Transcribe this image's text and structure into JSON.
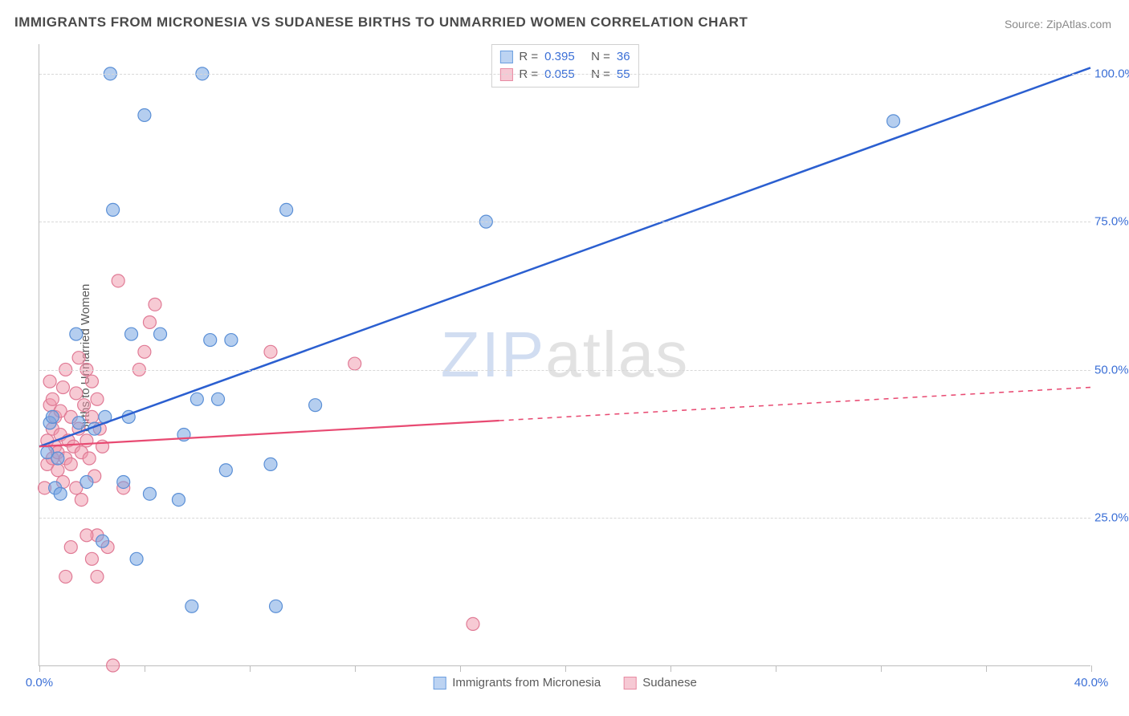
{
  "title": "IMMIGRANTS FROM MICRONESIA VS SUDANESE BIRTHS TO UNMARRIED WOMEN CORRELATION CHART",
  "source": "Source: ZipAtlas.com",
  "ylabel": "Births to Unmarried Women",
  "watermark": {
    "zip": "ZIP",
    "atlas": "atlas"
  },
  "chart": {
    "type": "scatter-with-trend",
    "xlim": [
      0,
      40
    ],
    "ylim": [
      0,
      105
    ],
    "x_ticks": [
      0,
      4,
      8,
      12,
      16,
      20,
      24,
      28,
      32,
      36,
      40
    ],
    "x_tick_labels": {
      "0": "0.0%",
      "40": "40.0%"
    },
    "y_ticks": [
      25,
      50,
      75,
      100
    ],
    "y_tick_labels": {
      "25": "25.0%",
      "50": "50.0%",
      "75": "75.0%",
      "100": "100.0%"
    },
    "background_color": "#ffffff",
    "grid_color": "#d8d8d8",
    "axis_color": "#bdbdbd",
    "label_fontsize": 15,
    "tick_color_left": "#5a5a5a",
    "tick_color_right_blue": "#3b6fd6",
    "series": [
      {
        "name": "Immigrants from Micronesia",
        "color_fill": "rgba(120,165,225,0.55)",
        "color_stroke": "#5a8fd6",
        "swatch_fill": "#bcd3f2",
        "swatch_border": "#6a9ee0",
        "trend_color": "#2b5fd0",
        "trend_width": 2.5,
        "r_value": "0.395",
        "n_value": "36",
        "trend_line": {
          "x1": 0,
          "y1": 37,
          "x2": 40,
          "y2": 101
        },
        "trend_dash_from_x": 40,
        "points": [
          [
            0.3,
            36
          ],
          [
            0.4,
            41
          ],
          [
            0.5,
            42
          ],
          [
            0.6,
            30
          ],
          [
            0.7,
            35
          ],
          [
            0.8,
            29
          ],
          [
            1.4,
            56
          ],
          [
            1.5,
            41
          ],
          [
            1.8,
            31
          ],
          [
            2.1,
            40
          ],
          [
            2.4,
            21
          ],
          [
            2.5,
            42
          ],
          [
            2.7,
            100
          ],
          [
            2.8,
            77
          ],
          [
            3.2,
            31
          ],
          [
            3.4,
            42
          ],
          [
            3.5,
            56
          ],
          [
            3.7,
            18
          ],
          [
            4.0,
            93
          ],
          [
            4.2,
            29
          ],
          [
            4.6,
            56
          ],
          [
            5.3,
            28
          ],
          [
            5.5,
            39
          ],
          [
            5.8,
            10
          ],
          [
            6.0,
            45
          ],
          [
            6.2,
            100
          ],
          [
            6.5,
            55
          ],
          [
            6.8,
            45
          ],
          [
            7.1,
            33
          ],
          [
            7.3,
            55
          ],
          [
            8.8,
            34
          ],
          [
            9.0,
            10
          ],
          [
            9.4,
            77
          ],
          [
            10.5,
            44
          ],
          [
            17.0,
            75
          ],
          [
            32.5,
            92
          ]
        ]
      },
      {
        "name": "Sudanese",
        "color_fill": "rgba(240,150,170,0.50)",
        "color_stroke": "#e07a95",
        "swatch_fill": "#f6c9d4",
        "swatch_border": "#e78ba3",
        "trend_color": "#e84a72",
        "trend_width": 2.2,
        "r_value": "0.055",
        "n_value": "55",
        "trend_line": {
          "x1": 0,
          "y1": 37,
          "x2": 40,
          "y2": 47
        },
        "trend_dash_from_x": 17.5,
        "points": [
          [
            0.2,
            30
          ],
          [
            0.3,
            34
          ],
          [
            0.3,
            38
          ],
          [
            0.4,
            44
          ],
          [
            0.4,
            48
          ],
          [
            0.5,
            35
          ],
          [
            0.5,
            40
          ],
          [
            0.5,
            45
          ],
          [
            0.6,
            37
          ],
          [
            0.6,
            42
          ],
          [
            0.7,
            33
          ],
          [
            0.7,
            36
          ],
          [
            0.8,
            39
          ],
          [
            0.8,
            43
          ],
          [
            0.9,
            31
          ],
          [
            0.9,
            47
          ],
          [
            1.0,
            35
          ],
          [
            1.0,
            50
          ],
          [
            1.1,
            38
          ],
          [
            1.2,
            34
          ],
          [
            1.2,
            42
          ],
          [
            1.3,
            37
          ],
          [
            1.4,
            46
          ],
          [
            1.5,
            40
          ],
          [
            1.5,
            52
          ],
          [
            1.6,
            36
          ],
          [
            1.7,
            44
          ],
          [
            1.8,
            38
          ],
          [
            1.8,
            50
          ],
          [
            1.9,
            35
          ],
          [
            2.0,
            42
          ],
          [
            2.0,
            48
          ],
          [
            2.1,
            32
          ],
          [
            2.2,
            22
          ],
          [
            2.2,
            45
          ],
          [
            2.3,
            40
          ],
          [
            2.4,
            37
          ],
          [
            1.4,
            30
          ],
          [
            1.6,
            28
          ],
          [
            1.8,
            22
          ],
          [
            2.0,
            18
          ],
          [
            2.2,
            15
          ],
          [
            2.6,
            20
          ],
          [
            2.8,
            0
          ],
          [
            3.0,
            65
          ],
          [
            3.2,
            30
          ],
          [
            3.8,
            50
          ],
          [
            4.0,
            53
          ],
          [
            4.2,
            58
          ],
          [
            4.4,
            61
          ],
          [
            1.0,
            15
          ],
          [
            1.2,
            20
          ],
          [
            8.8,
            53
          ],
          [
            12.0,
            51
          ],
          [
            16.5,
            7
          ]
        ]
      }
    ],
    "point_radius": 8
  },
  "legend_top": {
    "r_label": "R =",
    "n_label": "N ="
  },
  "legend_bottom": {
    "items": [
      "Immigrants from Micronesia",
      "Sudanese"
    ]
  }
}
